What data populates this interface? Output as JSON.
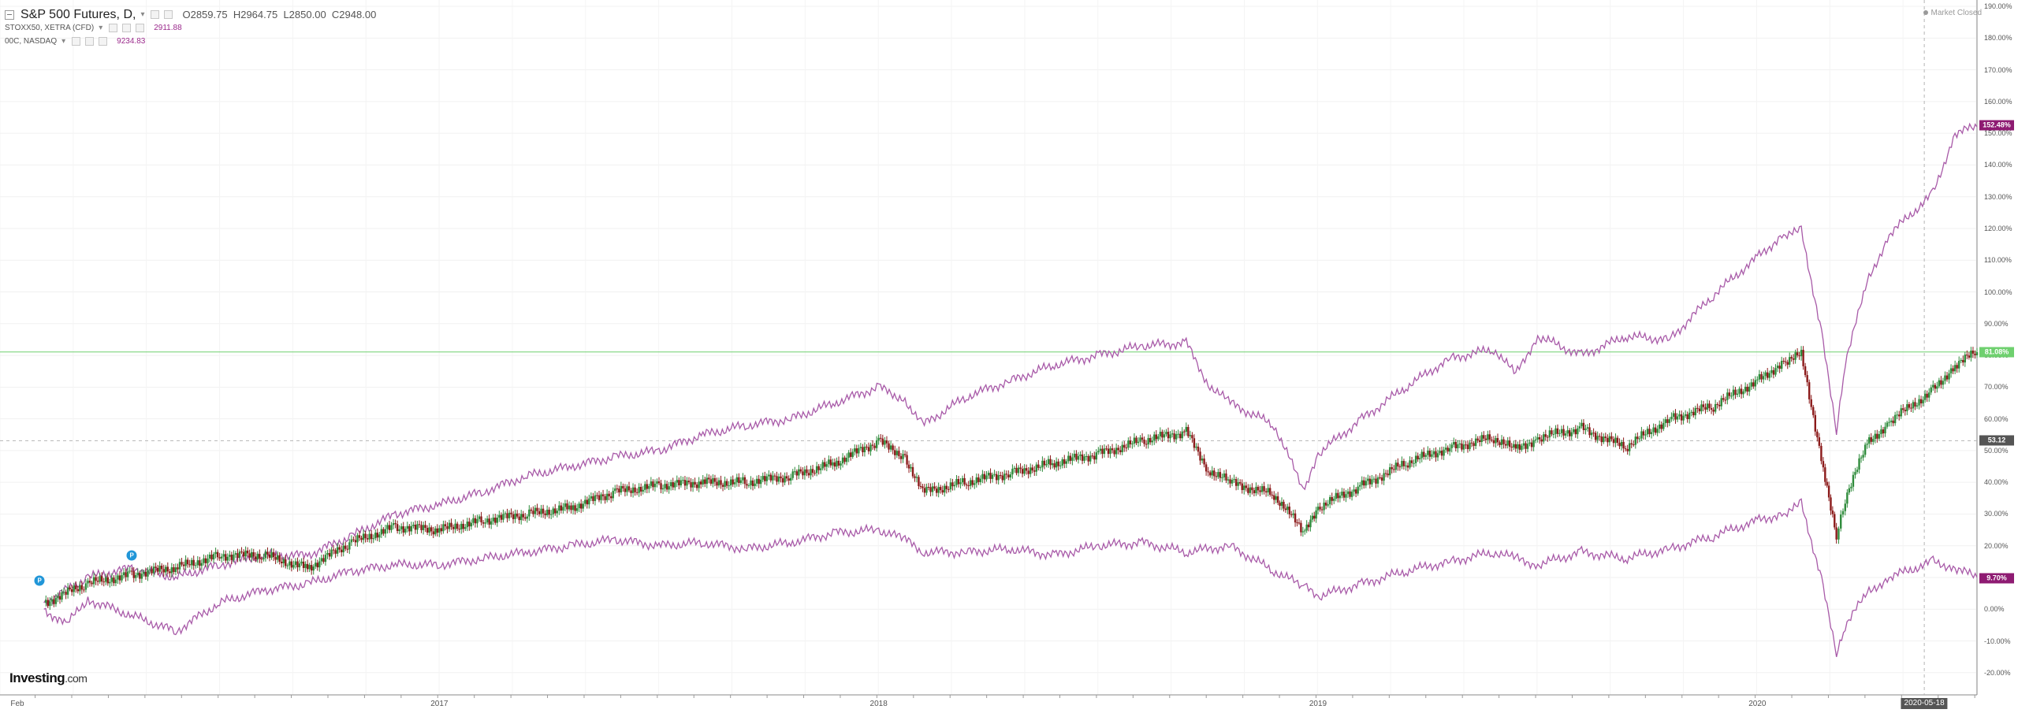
{
  "legend": {
    "main": {
      "title": "S&P 500 Futures, D,",
      "open": "O2859.75",
      "high": "H2964.75",
      "low": "L2850.00",
      "close": "C2948.00"
    },
    "compare1": {
      "name": "STOXX50, XETRA (CFD)",
      "value": "2911.88"
    },
    "compare2": {
      "name": "00C, NASDAQ",
      "value": "9234.83"
    }
  },
  "status": {
    "market": "Market Closed"
  },
  "logo": {
    "text": "Investing",
    "suffix": ".com"
  },
  "markers": {
    "label": "P"
  },
  "colors": {
    "up": "#2e8b3b",
    "down": "#8b1a1a",
    "compare": "#a85aa8",
    "main_tag": "#6fd06f",
    "compare_tag": "#8e1b72",
    "level_tag": "#555555",
    "crosshair": "#b5b5b5"
  },
  "chart_data": {
    "type": "line",
    "y_unit": "percent change",
    "x_range": [
      "2016-02",
      "2020-06"
    ],
    "ylim": [
      -27,
      192
    ],
    "y_ticks": [
      "190.00%",
      "180.00%",
      "170.00%",
      "160.00%",
      "150.00%",
      "140.00%",
      "130.00%",
      "120.00%",
      "110.00%",
      "100.00%",
      "90.00%",
      "80.00%",
      "70.00%",
      "60.00%",
      "50.00%",
      "40.00%",
      "30.00%",
      "20.00%",
      "10.00%",
      "0.00%",
      "-10.00%",
      "-20.00%"
    ],
    "x_ticks": [
      "Feb",
      "2017",
      "2018",
      "2019",
      "2020"
    ],
    "price_labels": {
      "compare_high": "152.48%",
      "main": "81.08%",
      "level": "53.12",
      "compare_low": "9.70%"
    },
    "crosshair_date": "2020-05-18",
    "grid": true,
    "series": [
      {
        "name": "S&P 500 Futures",
        "style": "candles",
        "x": [
          2016.1,
          2016.2,
          2016.3,
          2016.4,
          2016.5,
          2016.6,
          2016.7,
          2016.8,
          2016.9,
          2017.0,
          2017.1,
          2017.2,
          2017.3,
          2017.4,
          2017.5,
          2017.6,
          2017.7,
          2017.8,
          2017.9,
          2018.0,
          2018.06,
          2018.1,
          2018.2,
          2018.3,
          2018.4,
          2018.5,
          2018.6,
          2018.7,
          2018.75,
          2018.8,
          2018.9,
          2018.97,
          2019.0,
          2019.1,
          2019.2,
          2019.3,
          2019.4,
          2019.45,
          2019.5,
          2019.6,
          2019.7,
          2019.8,
          2019.9,
          2020.0,
          2020.06,
          2020.1,
          2020.15,
          2020.18,
          2020.2,
          2020.25,
          2020.3,
          2020.4,
          2020.45,
          2020.5
        ],
        "y": [
          2,
          8,
          11,
          13,
          17,
          17,
          13,
          21,
          26,
          25,
          28,
          30,
          32,
          37,
          39,
          40,
          40,
          42,
          46,
          53,
          48,
          37,
          40,
          43,
          46,
          49,
          53,
          56,
          44,
          40,
          36,
          24,
          32,
          39,
          46,
          51,
          54,
          50,
          54,
          57,
          51,
          60,
          64,
          72,
          78,
          80,
          45,
          22,
          35,
          52,
          59,
          69,
          77,
          81
        ]
      },
      {
        "name": "STOXX50, XETRA (CFD)",
        "style": "line",
        "x": [
          2016.1,
          2016.15,
          2016.2,
          2016.3,
          2016.4,
          2016.5,
          2016.6,
          2016.7,
          2016.8,
          2016.9,
          2017.0,
          2017.1,
          2017.2,
          2017.3,
          2017.4,
          2017.5,
          2017.6,
          2017.7,
          2017.8,
          2017.9,
          2018.0,
          2018.06,
          2018.1,
          2018.2,
          2018.3,
          2018.4,
          2018.5,
          2018.6,
          2018.7,
          2018.8,
          2018.9,
          2018.97,
          2019.0,
          2019.1,
          2019.2,
          2019.3,
          2019.4,
          2019.45,
          2019.5,
          2019.6,
          2019.7,
          2019.8,
          2019.9,
          2020.0,
          2020.06,
          2020.1,
          2020.15,
          2020.18,
          2020.2,
          2020.25,
          2020.3,
          2020.4,
          2020.45,
          2020.5
        ],
        "y": [
          0,
          -5,
          3,
          -2,
          -7,
          2,
          6,
          8,
          12,
          14,
          14,
          16,
          18,
          20,
          22,
          20,
          21,
          19,
          21,
          24,
          25,
          22,
          18,
          18,
          19,
          17,
          20,
          21,
          18,
          20,
          12,
          7,
          4,
          8,
          12,
          15,
          18,
          16,
          14,
          18,
          16,
          19,
          23,
          28,
          30,
          33,
          8,
          -15,
          -5,
          5,
          10,
          15,
          13,
          10
        ]
      },
      {
        "name": "00C, NASDAQ",
        "style": "line",
        "x": [
          2016.1,
          2016.2,
          2016.3,
          2016.4,
          2016.5,
          2016.6,
          2016.7,
          2016.8,
          2016.9,
          2017.0,
          2017.1,
          2017.2,
          2017.3,
          2017.4,
          2017.5,
          2017.6,
          2017.7,
          2017.8,
          2017.9,
          2018.0,
          2018.06,
          2018.1,
          2018.2,
          2018.3,
          2018.4,
          2018.5,
          2018.6,
          2018.7,
          2018.75,
          2018.8,
          2018.9,
          2018.97,
          2019.0,
          2019.1,
          2019.2,
          2019.3,
          2019.4,
          2019.45,
          2019.5,
          2019.6,
          2019.7,
          2019.8,
          2019.9,
          2020.0,
          2020.06,
          2020.1,
          2020.15,
          2020.18,
          2020.2,
          2020.25,
          2020.3,
          2020.4,
          2020.45,
          2020.5
        ],
        "y": [
          2,
          10,
          13,
          10,
          14,
          17,
          17,
          23,
          30,
          33,
          37,
          42,
          45,
          48,
          50,
          55,
          58,
          60,
          65,
          70,
          66,
          58,
          67,
          72,
          77,
          80,
          83,
          84,
          71,
          65,
          58,
          37,
          49,
          60,
          70,
          79,
          82,
          74,
          86,
          80,
          86,
          85,
          99,
          111,
          118,
          119,
          85,
          55,
          78,
          103,
          118,
          131,
          150,
          152
        ]
      }
    ]
  }
}
